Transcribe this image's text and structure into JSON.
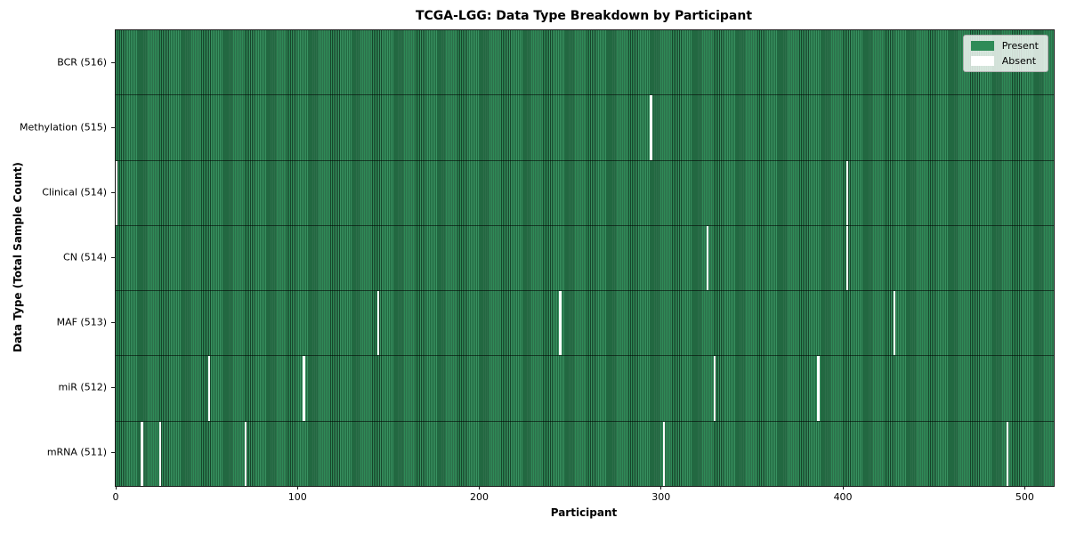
{
  "title": "TCGA-LGG: Data Type Breakdown by Participant",
  "axes": {
    "xlabel": "Participant",
    "ylabel": "Data Type (Total Sample Count)"
  },
  "legend": {
    "items": [
      {
        "label": "Present",
        "color": "#2e8b57"
      },
      {
        "label": "Absent",
        "color": "#ffffff"
      }
    ]
  },
  "chart_data": {
    "type": "heatmap",
    "title": "TCGA-LGG: Data Type Breakdown by Participant",
    "xlabel": "Participant",
    "ylabel": "Data Type (Total Sample Count)",
    "x_ticks": [
      0,
      100,
      200,
      300,
      400,
      500
    ],
    "x_range": [
      0,
      516
    ],
    "total_participants": 516,
    "present_color": "#2e8b57",
    "absent_color": "#ffffff",
    "legend_position": "upper right",
    "rows": [
      {
        "label": "BCR (516)",
        "data_type": "BCR",
        "sample_count": 516,
        "absent_participants": []
      },
      {
        "label": "Methylation (515)",
        "data_type": "Methylation",
        "sample_count": 515,
        "absent_participants": [
          294
        ]
      },
      {
        "label": "Clinical (514)",
        "data_type": "Clinical",
        "sample_count": 514,
        "absent_participants": [
          0,
          402
        ]
      },
      {
        "label": "CN (514)",
        "data_type": "CN",
        "sample_count": 514,
        "absent_participants": [
          325,
          402
        ]
      },
      {
        "label": "MAF (513)",
        "data_type": "MAF",
        "sample_count": 513,
        "absent_participants": [
          144,
          244,
          428
        ]
      },
      {
        "label": "miR (512)",
        "data_type": "miR",
        "sample_count": 512,
        "absent_participants": [
          51,
          103,
          329,
          386
        ]
      },
      {
        "label": "mRNA (511)",
        "data_type": "mRNA",
        "sample_count": 511,
        "absent_participants": [
          14,
          24,
          71,
          301,
          490
        ]
      }
    ]
  }
}
